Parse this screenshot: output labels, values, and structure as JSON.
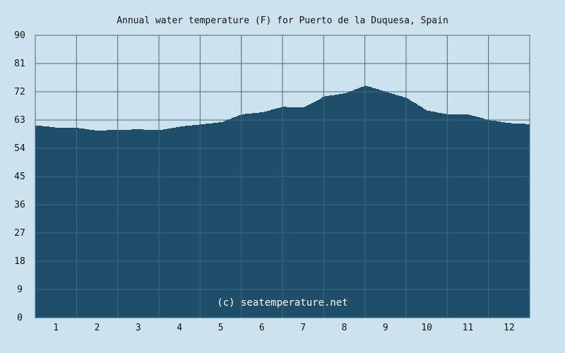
{
  "chart_data": {
    "type": "area",
    "title": "Annual water temperature (F) for Puerto de la Duquesa, Spain",
    "xlabel": "",
    "ylabel": "",
    "x": [
      0.5,
      1,
      1.5,
      2,
      2.5,
      3,
      3.5,
      4,
      4.5,
      5,
      5.5,
      6,
      6.5,
      7,
      7.5,
      8,
      8.5,
      9,
      9.5,
      10,
      10.5,
      11,
      11.5,
      12,
      12.5
    ],
    "y": [
      61.3,
      60.6,
      60.5,
      59.6,
      59.9,
      60.0,
      59.8,
      60.9,
      61.6,
      62.3,
      64.8,
      65.5,
      67.2,
      67.0,
      70.5,
      71.5,
      74.0,
      72.0,
      70.0,
      66.0,
      64.8,
      64.7,
      63.0,
      62.0,
      61.7
    ],
    "xlim": [
      0.5,
      12.5
    ],
    "ylim": [
      0,
      90
    ],
    "x_ticks": [
      "1",
      "2",
      "3",
      "4",
      "5",
      "6",
      "7",
      "8",
      "9",
      "10",
      "11",
      "12"
    ],
    "y_ticks": [
      "0",
      "9",
      "18",
      "27",
      "36",
      "45",
      "54",
      "63",
      "72",
      "81",
      "90"
    ],
    "grid": true,
    "colors": {
      "background": "#cce3ee",
      "fill": "#1f4e6a",
      "grid": "#3e6b86"
    },
    "watermark": "(c) seatemperature.net"
  }
}
